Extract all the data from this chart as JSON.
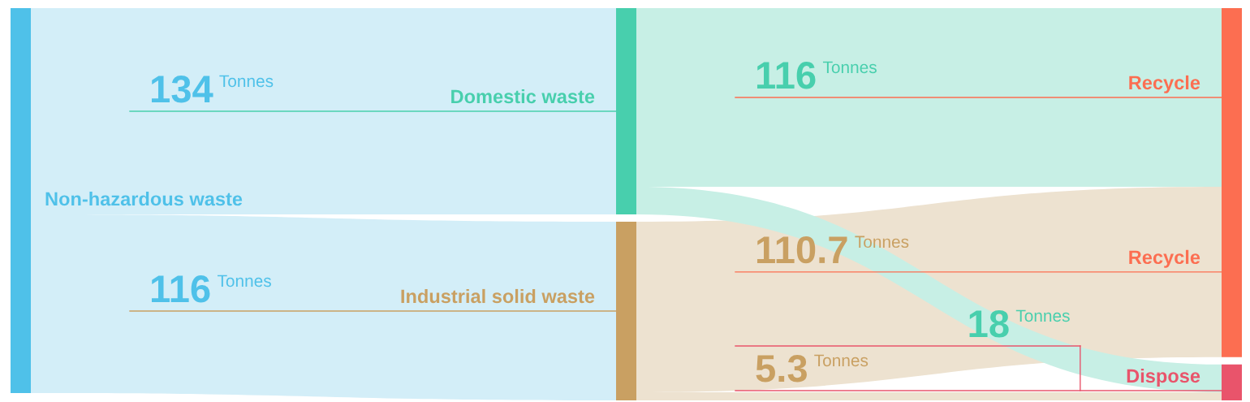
{
  "chart_data": {
    "type": "other",
    "ylabel": "Tonnes",
    "data_labels": true,
    "categories": [
      null,
      "Domestic waste",
      "Industrial solid waste",
      "Recycle",
      "Dispose"
    ],
    "colors": [
      "#4fc1e9",
      "#48cfad",
      "#c9a062",
      "#fc6e51",
      "#e9546b"
    ],
    "series": [
      {
        "name": "Non-hazardous waste",
        "color": "#d3eef8",
        "values": [
          null,
          134,
          116,
          null,
          null
        ]
      },
      {
        "color": "#c7efe5",
        "values": [
          null,
          null,
          null,
          116,
          18
        ]
      },
      {
        "color": "#ede2d0",
        "values": [
          null,
          null,
          null,
          110.7,
          5.3
        ]
      }
    ]
  }
}
